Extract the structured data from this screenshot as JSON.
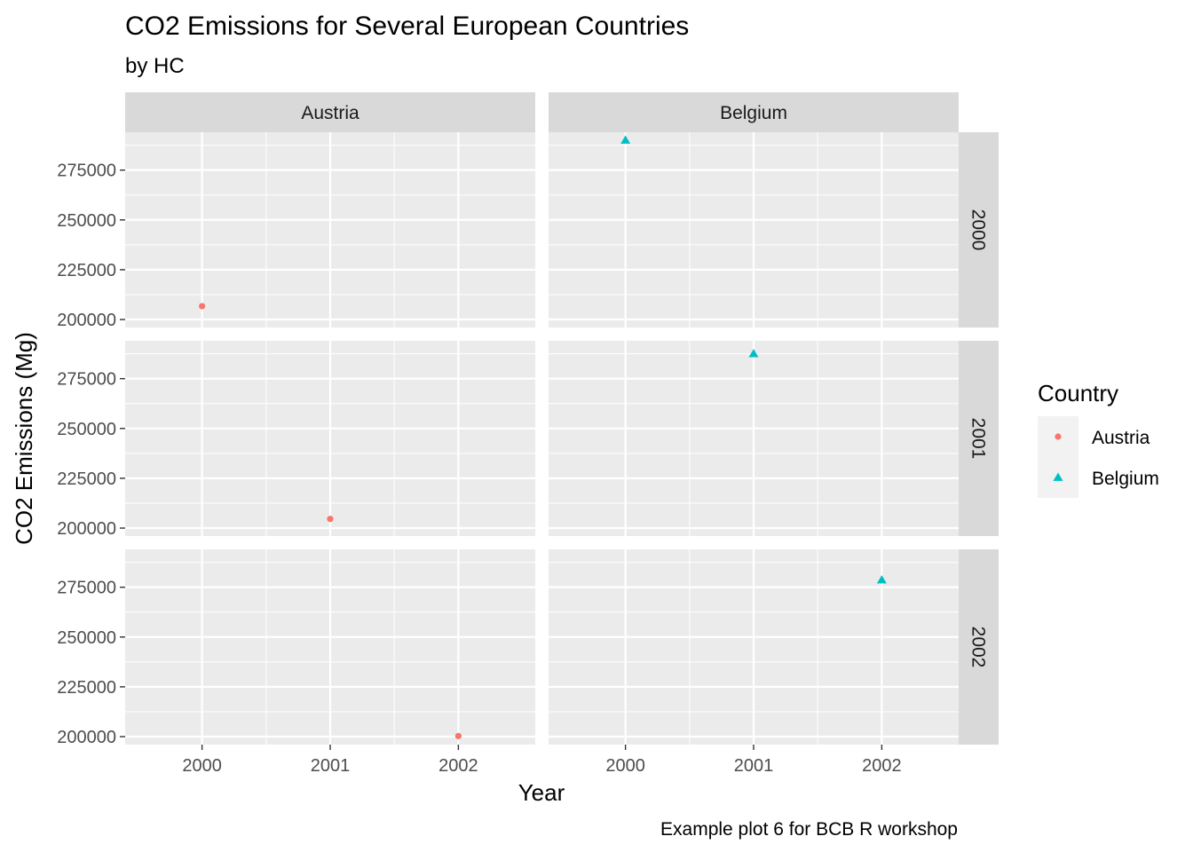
{
  "chart_data": {
    "type": "scatter",
    "title": "CO2 Emissions for Several European Countries",
    "subtitle": "by HC",
    "caption": "Example plot 6 for BCB R workshop",
    "xlabel": "Year",
    "ylabel": "CO2 Emissions (Mg)",
    "xlim": [
      1999.4,
      2002.6
    ],
    "ylim": [
      196000,
      294000
    ],
    "x_ticks": [
      2000,
      2001,
      2002
    ],
    "x_tick_labels": [
      "2000",
      "2001",
      "2002"
    ],
    "y_ticks": [
      200000,
      225000,
      250000,
      275000
    ],
    "y_tick_labels": [
      "200000",
      "225000",
      "250000",
      "275000"
    ],
    "facet_cols": [
      "Austria",
      "Belgium"
    ],
    "facet_rows": [
      "2000",
      "2001",
      "2002"
    ],
    "legend": {
      "title": "Country",
      "position": "right",
      "entries": [
        {
          "label": "Austria",
          "shape": "circle",
          "color": "#F8766D"
        },
        {
          "label": "Belgium",
          "shape": "triangle",
          "color": "#00BFC4"
        }
      ]
    },
    "series": [
      {
        "name": "Austria",
        "shape": "circle",
        "color": "#F8766D",
        "points": [
          {
            "panel_col": "Austria",
            "panel_row": "2000",
            "x": 2000,
            "y": 206700
          },
          {
            "panel_col": "Austria",
            "panel_row": "2001",
            "x": 2001,
            "y": 204600
          },
          {
            "panel_col": "Austria",
            "panel_row": "2002",
            "x": 2002,
            "y": 200300
          }
        ]
      },
      {
        "name": "Belgium",
        "shape": "triangle",
        "color": "#00BFC4",
        "points": [
          {
            "panel_col": "Belgium",
            "panel_row": "2000",
            "x": 2000,
            "y": 290000
          },
          {
            "panel_col": "Belgium",
            "panel_row": "2001",
            "x": 2001,
            "y": 287500
          },
          {
            "panel_col": "Belgium",
            "panel_row": "2002",
            "x": 2002,
            "y": 278600
          }
        ]
      }
    ],
    "colors": {
      "panel_background": "#EBEBEB",
      "grid": "#FFFFFF",
      "strip_background": "#D9D9D9",
      "text": "#4D4D4D"
    }
  }
}
